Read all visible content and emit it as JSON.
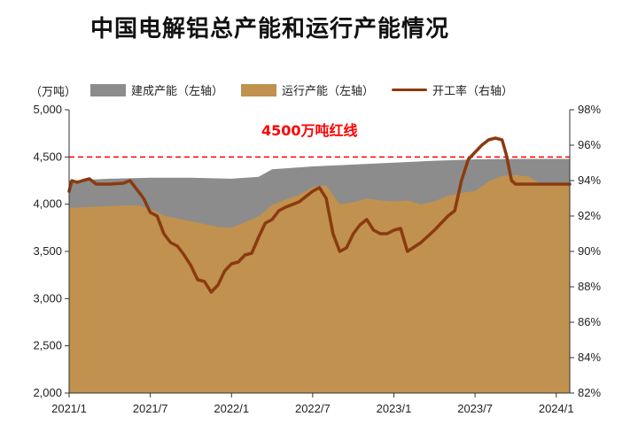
{
  "chart_data": {
    "type": "area",
    "title": "中国电解铝总产能和运行产能情况",
    "y_left_unit": "（万吨）",
    "ylim_left": [
      2000,
      5000
    ],
    "ylim_right": [
      82,
      98
    ],
    "y_left_ticks": [
      "2,000",
      "2,500",
      "3,000",
      "3,500",
      "4,000",
      "4,500",
      "5,000"
    ],
    "y_right_ticks": [
      "82%",
      "84%",
      "86%",
      "88%",
      "90%",
      "92%",
      "94%",
      "96%",
      "98%"
    ],
    "x_ticks": [
      "2021/1",
      "2021/7",
      "2022/1",
      "2022/7",
      "2023/1",
      "2023/7",
      "2024/1"
    ],
    "x_tick_positions": [
      0,
      6,
      12,
      18,
      24,
      30,
      36
    ],
    "xlim": [
      0,
      37
    ],
    "reference_line": {
      "value": 4500,
      "label": "4500万吨红线",
      "color": "#ff0000"
    },
    "series": [
      {
        "name": "建成产能（左轴）",
        "axis": "left",
        "style": "area",
        "color": "#8c8c8c",
        "points": [
          [
            0,
            4250
          ],
          [
            3,
            4270
          ],
          [
            6,
            4280
          ],
          [
            9,
            4280
          ],
          [
            12,
            4270
          ],
          [
            14,
            4290
          ],
          [
            15,
            4370
          ],
          [
            18,
            4400
          ],
          [
            21,
            4420
          ],
          [
            24,
            4440
          ],
          [
            27,
            4460
          ],
          [
            30,
            4475
          ],
          [
            33,
            4480
          ],
          [
            37,
            4480
          ]
        ]
      },
      {
        "name": "运行产能（左轴）",
        "axis": "left",
        "style": "area",
        "color": "#c0914f",
        "points": [
          [
            0,
            3960
          ],
          [
            3,
            3980
          ],
          [
            5,
            3990
          ],
          [
            6,
            3950
          ],
          [
            7,
            3880
          ],
          [
            9,
            3820
          ],
          [
            10,
            3790
          ],
          [
            11,
            3760
          ],
          [
            12,
            3750
          ],
          [
            13,
            3810
          ],
          [
            14,
            3870
          ],
          [
            15,
            3990
          ],
          [
            16,
            4050
          ],
          [
            17,
            4100
          ],
          [
            18,
            4180
          ],
          [
            19,
            4200
          ],
          [
            20,
            4000
          ],
          [
            21,
            4020
          ],
          [
            22,
            4060
          ],
          [
            23,
            4040
          ],
          [
            24,
            4030
          ],
          [
            25,
            4040
          ],
          [
            26,
            4000
          ],
          [
            27,
            4030
          ],
          [
            28,
            4090
          ],
          [
            29,
            4120
          ],
          [
            30,
            4140
          ],
          [
            31,
            4240
          ],
          [
            32,
            4300
          ],
          [
            33,
            4310
          ],
          [
            34,
            4290
          ],
          [
            35,
            4200
          ],
          [
            37,
            4200
          ]
        ]
      },
      {
        "name": "开工率（右轴）",
        "axis": "right",
        "style": "line",
        "color": "#8b3a0f",
        "points": [
          [
            0,
            93.4
          ],
          [
            0.2,
            94
          ],
          [
            0.6,
            93.9
          ],
          [
            1,
            94
          ],
          [
            1.5,
            94.1
          ],
          [
            2,
            93.8
          ],
          [
            3,
            93.8
          ],
          [
            4,
            93.85
          ],
          [
            4.5,
            94
          ],
          [
            5,
            93.5
          ],
          [
            5.5,
            93
          ],
          [
            6,
            92.2
          ],
          [
            6.5,
            92
          ],
          [
            7,
            91
          ],
          [
            7.5,
            90.5
          ],
          [
            8,
            90.3
          ],
          [
            8.5,
            89.8
          ],
          [
            9,
            89.2
          ],
          [
            9.5,
            88.4
          ],
          [
            10,
            88.3
          ],
          [
            10.5,
            87.7
          ],
          [
            11,
            88.1
          ],
          [
            11.5,
            88.9
          ],
          [
            12,
            89.3
          ],
          [
            12.5,
            89.4
          ],
          [
            13,
            89.8
          ],
          [
            13.5,
            89.9
          ],
          [
            14,
            90.8
          ],
          [
            14.5,
            91.6
          ],
          [
            15,
            91.8
          ],
          [
            15.5,
            92.3
          ],
          [
            16,
            92.5
          ],
          [
            17,
            92.8
          ],
          [
            17.5,
            93.1
          ],
          [
            18,
            93.4
          ],
          [
            18.5,
            93.6
          ],
          [
            19,
            93
          ],
          [
            19.5,
            91
          ],
          [
            20,
            90
          ],
          [
            20.5,
            90.2
          ],
          [
            21,
            91
          ],
          [
            21.5,
            91.5
          ],
          [
            22,
            91.8
          ],
          [
            22.5,
            91.2
          ],
          [
            23,
            91
          ],
          [
            23.5,
            91
          ],
          [
            24,
            91.2
          ],
          [
            24.5,
            91.3
          ],
          [
            25,
            90
          ],
          [
            26,
            90.5
          ],
          [
            27,
            91.2
          ],
          [
            27.5,
            91.6
          ],
          [
            28,
            92
          ],
          [
            28.5,
            92.3
          ],
          [
            29,
            94
          ],
          [
            29.5,
            95.2
          ],
          [
            30,
            95.6
          ],
          [
            30.5,
            96
          ],
          [
            31,
            96.3
          ],
          [
            31.5,
            96.4
          ],
          [
            32,
            96.3
          ],
          [
            32.3,
            95.5
          ],
          [
            32.7,
            94
          ],
          [
            33,
            93.8
          ],
          [
            34,
            93.8
          ],
          [
            37,
            93.8
          ]
        ]
      }
    ]
  }
}
